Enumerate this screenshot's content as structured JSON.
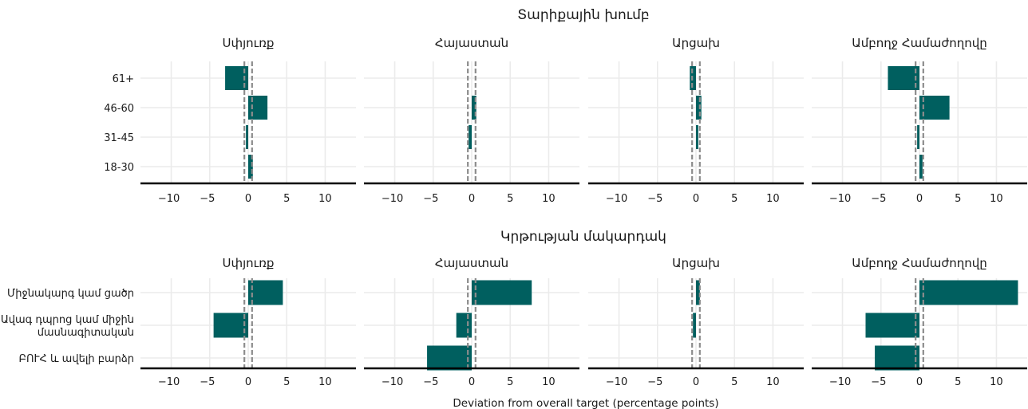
{
  "chart_data": {
    "type": "bar",
    "orientation": "horizontal",
    "xlabel": "Deviation from overall target (percentage points)",
    "xlim": [
      -14,
      14
    ],
    "xticks": [
      -10,
      -5,
      0,
      5,
      10
    ],
    "xtick_labels": [
      "−10",
      "−5",
      "0",
      "5",
      "10"
    ],
    "reference_lines": [
      -0.5,
      0.5
    ],
    "bar_color": "#005f5f",
    "grid": true,
    "facets": [
      "Սփյուռք",
      "Հայաստան",
      "Արցախ",
      "Ամբողջ Համաժողովը"
    ],
    "panels": [
      {
        "title": "Տարիքային խումբ",
        "categories": [
          "61+",
          "46-60",
          "31-45",
          "18-30"
        ],
        "category_lines": [
          [
            "61+"
          ],
          [
            "46-60"
          ],
          [
            "31-45"
          ],
          [
            "18-30"
          ]
        ],
        "series": [
          {
            "facet": "Սփյուռք",
            "values": [
              -3.0,
              2.5,
              -0.3,
              0.6
            ]
          },
          {
            "facet": "Հայաստան",
            "values": [
              0.0,
              0.6,
              -0.4,
              0.0
            ]
          },
          {
            "facet": "Արցախ",
            "values": [
              -0.8,
              0.7,
              0.3,
              0.0
            ]
          },
          {
            "facet": "Ամբողջ Համաժողովը",
            "values": [
              -4.1,
              3.9,
              -0.3,
              0.4
            ]
          }
        ]
      },
      {
        "title": "Կրթության մակարդակ",
        "categories": [
          "Միջնակարգ կամ ցածր",
          "Ավագ դպրոց կամ միջին մասնագիտական",
          "ԲՈՒՀ և ավելի բարձր"
        ],
        "category_lines": [
          [
            "Միջնակարգ կամ ցածր"
          ],
          [
            "Ավագ դպրոց կամ միջին",
            "մասնագիտական"
          ],
          [
            "ԲՈՒՀ և ավելի բարձր"
          ]
        ],
        "series": [
          {
            "facet": "Սփյուռք",
            "values": [
              4.5,
              -4.5,
              0.0
            ]
          },
          {
            "facet": "Հայաստան",
            "values": [
              7.8,
              -2.0,
              -5.8
            ]
          },
          {
            "facet": "Արցախ",
            "values": [
              0.5,
              -0.4,
              0.0
            ]
          },
          {
            "facet": "Ամբողջ Համաժողովը",
            "values": [
              12.8,
              -7.0,
              -5.8
            ]
          }
        ]
      }
    ]
  }
}
